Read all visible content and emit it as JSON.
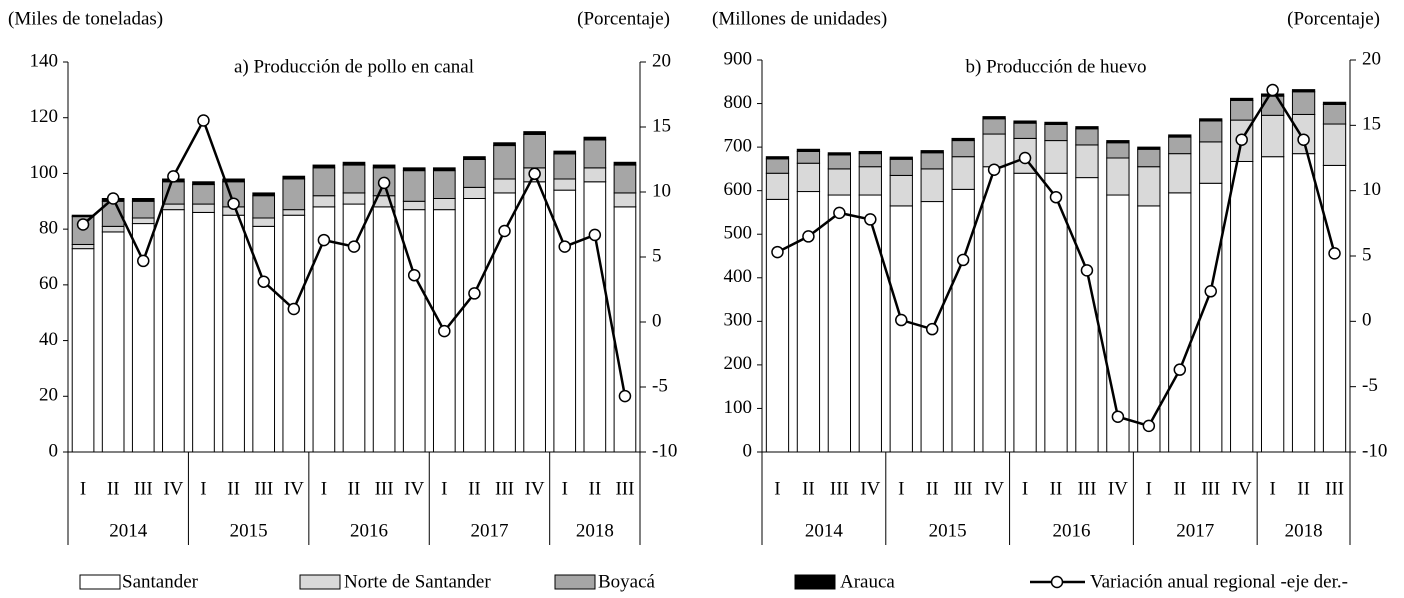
{
  "legend": [
    {
      "name": "Santander",
      "color": "#ffffff"
    },
    {
      "name": "Norte de Santander",
      "color": "#d9d9d9"
    },
    {
      "name": "Boyacá",
      "color": "#a6a6a6"
    },
    {
      "name": "Arauca",
      "color": "#000000"
    },
    {
      "name": "Variación anual regional -eje der.-",
      "color": "#000000"
    }
  ],
  "chart_data": [
    {
      "type": "bar",
      "title": "a) Producción de pollo en canal",
      "y_label": "(Miles de toneladas)",
      "y2_label": "(Porcentaje)",
      "groups": [
        {
          "label": "2014",
          "categories": [
            "I",
            "II",
            "III",
            "IV"
          ]
        },
        {
          "label": "2015",
          "categories": [
            "I",
            "II",
            "III",
            "IV"
          ]
        },
        {
          "label": "2016",
          "categories": [
            "I",
            "II",
            "III",
            "IV"
          ]
        },
        {
          "label": "2017",
          "categories": [
            "I",
            "II",
            "III",
            "IV"
          ]
        },
        {
          "label": "2018",
          "categories": [
            "I",
            "II",
            "III"
          ]
        }
      ],
      "ylim": [
        0,
        140
      ],
      "yticks": [
        0,
        20,
        40,
        60,
        80,
        100,
        120,
        140
      ],
      "y2lim": [
        -10,
        20
      ],
      "y2ticks": [
        -10,
        -5,
        0,
        5,
        10,
        15,
        20
      ],
      "series": [
        {
          "values": [
            73,
            79,
            82,
            87,
            86,
            85,
            81,
            85,
            88,
            89,
            88,
            87,
            87,
            91,
            93,
            97,
            94,
            97,
            88
          ]
        },
        {
          "values": [
            1.5,
            2,
            2,
            2,
            3,
            3,
            3,
            2,
            4,
            4,
            4,
            3,
            4,
            4,
            5,
            5,
            4,
            5,
            5
          ]
        },
        {
          "values": [
            10,
            9,
            6,
            8,
            7,
            9,
            8,
            11,
            10,
            10,
            10,
            11,
            10,
            10,
            12,
            12,
            9,
            10,
            10
          ]
        },
        {
          "values": [
            0.5,
            1,
            1,
            1,
            1,
            1,
            1,
            1,
            1,
            1,
            1,
            1,
            1,
            1,
            1,
            1,
            1,
            1,
            1
          ]
        },
        {
          "axis": "y2",
          "values": [
            7.5,
            9.5,
            4.7,
            11.2,
            15.5,
            9.1,
            3.1,
            1.0,
            6.3,
            5.8,
            10.7,
            3.6,
            -0.7,
            2.2,
            7.0,
            11.4,
            5.8,
            6.7,
            -5.7
          ]
        }
      ]
    },
    {
      "type": "bar",
      "title": "b) Producción de huevo",
      "y_label": "(Millones de unidades)",
      "y2_label": "(Porcentaje)",
      "groups": [
        {
          "label": "2014",
          "categories": [
            "I",
            "II",
            "III",
            "IV"
          ]
        },
        {
          "label": "2015",
          "categories": [
            "I",
            "II",
            "III",
            "IV"
          ]
        },
        {
          "label": "2016",
          "categories": [
            "I",
            "II",
            "III",
            "IV"
          ]
        },
        {
          "label": "2017",
          "categories": [
            "I",
            "II",
            "III",
            "IV"
          ]
        },
        {
          "label": "2018",
          "categories": [
            "I",
            "II",
            "III"
          ]
        }
      ],
      "ylim": [
        0,
        900
      ],
      "yticks": [
        0,
        100,
        200,
        300,
        400,
        500,
        600,
        700,
        800,
        900
      ],
      "y2lim": [
        -10,
        20
      ],
      "y2ticks": [
        -10,
        -5,
        0,
        5,
        10,
        15,
        20
      ],
      "series": [
        {
          "values": [
            580,
            598,
            590,
            590,
            565,
            575,
            603,
            655,
            640,
            640,
            630,
            590,
            565,
            595,
            617,
            667,
            678,
            685,
            658
          ]
        },
        {
          "values": [
            60,
            65,
            60,
            65,
            70,
            75,
            75,
            75,
            80,
            75,
            75,
            85,
            90,
            90,
            95,
            95,
            95,
            90,
            95
          ]
        },
        {
          "values": [
            33,
            27,
            32,
            30,
            37,
            37,
            37,
            35,
            35,
            37,
            37,
            35,
            40,
            38,
            48,
            45,
            44,
            52,
            45
          ]
        },
        {
          "values": [
            5,
            5,
            5,
            5,
            5,
            5,
            5,
            5,
            5,
            5,
            5,
            5,
            5,
            5,
            5,
            5,
            5,
            5,
            5
          ]
        },
        {
          "axis": "y2",
          "values": [
            5.3,
            6.5,
            8.3,
            7.8,
            0.1,
            -0.6,
            4.7,
            11.6,
            12.5,
            9.5,
            3.9,
            -7.3,
            -8.0,
            -3.7,
            2.3,
            13.9,
            17.7,
            13.9,
            5.2
          ]
        }
      ]
    }
  ]
}
